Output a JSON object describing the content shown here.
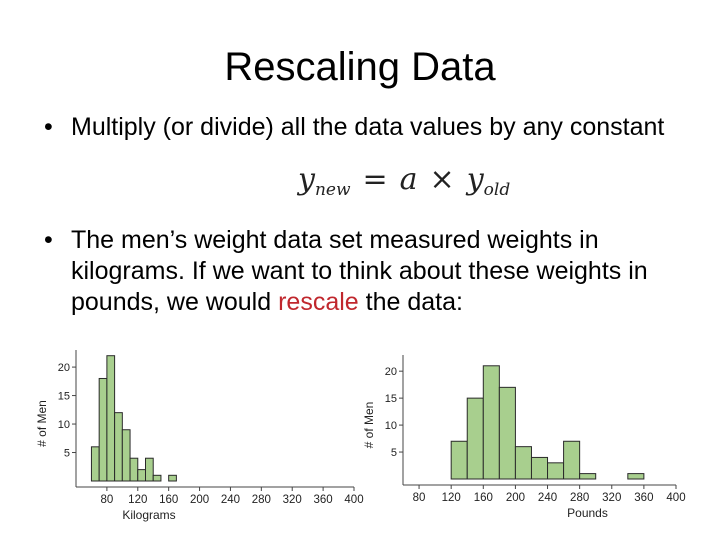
{
  "slide": {
    "title": "Rescaling Data",
    "bullet_char": "•",
    "bullet1": "Multiply (or divide) all the data values by any constant",
    "formula": {
      "lhs": "y",
      "lhs_sub": "new",
      "equals": "=",
      "coef": "a",
      "times": "×",
      "rhs": "y",
      "rhs_sub": "old"
    },
    "bullet2_pre": "The men’s weight data set measured weights in kilograms. If we want to think about these weights in pounds, we would ",
    "bullet2_highlight": "rescale",
    "bullet2_post": " the data:",
    "highlight_color": "#c0272d"
  },
  "chart_data": [
    {
      "type": "bar",
      "xlabel": "Kilograms",
      "ylabel": "# of Men",
      "xlim": [
        40,
        400
      ],
      "ylim": [
        0,
        23
      ],
      "xticks": [
        80,
        120,
        160,
        200,
        240,
        280,
        320,
        360,
        400
      ],
      "yticks": [
        5,
        10,
        15,
        20
      ],
      "bin_width": 10,
      "bins": [
        {
          "start": 60,
          "count": 6
        },
        {
          "start": 70,
          "count": 18
        },
        {
          "start": 80,
          "count": 22
        },
        {
          "start": 90,
          "count": 12
        },
        {
          "start": 100,
          "count": 9
        },
        {
          "start": 110,
          "count": 4
        },
        {
          "start": 120,
          "count": 2
        },
        {
          "start": 130,
          "count": 4
        },
        {
          "start": 140,
          "count": 1
        },
        {
          "start": 160,
          "count": 1
        }
      ],
      "bar_color": "#a8cf8e",
      "bar_edge": "#2a2a2a"
    },
    {
      "type": "bar",
      "xlabel": "Pounds",
      "ylabel": "# of Men",
      "xlim": [
        60,
        400
      ],
      "ylim": [
        0,
        23
      ],
      "xticks": [
        80,
        120,
        160,
        200,
        240,
        280,
        320,
        360,
        400
      ],
      "yticks": [
        5,
        10,
        15,
        20
      ],
      "bin_width": 20,
      "bins": [
        {
          "start": 120,
          "count": 7
        },
        {
          "start": 140,
          "count": 15
        },
        {
          "start": 160,
          "count": 21
        },
        {
          "start": 180,
          "count": 17
        },
        {
          "start": 200,
          "count": 6
        },
        {
          "start": 220,
          "count": 4
        },
        {
          "start": 240,
          "count": 3
        },
        {
          "start": 260,
          "count": 7
        },
        {
          "start": 280,
          "count": 1
        },
        {
          "start": 340,
          "count": 1
        }
      ],
      "bar_color": "#a8cf8e",
      "bar_edge": "#2a2a2a"
    }
  ]
}
